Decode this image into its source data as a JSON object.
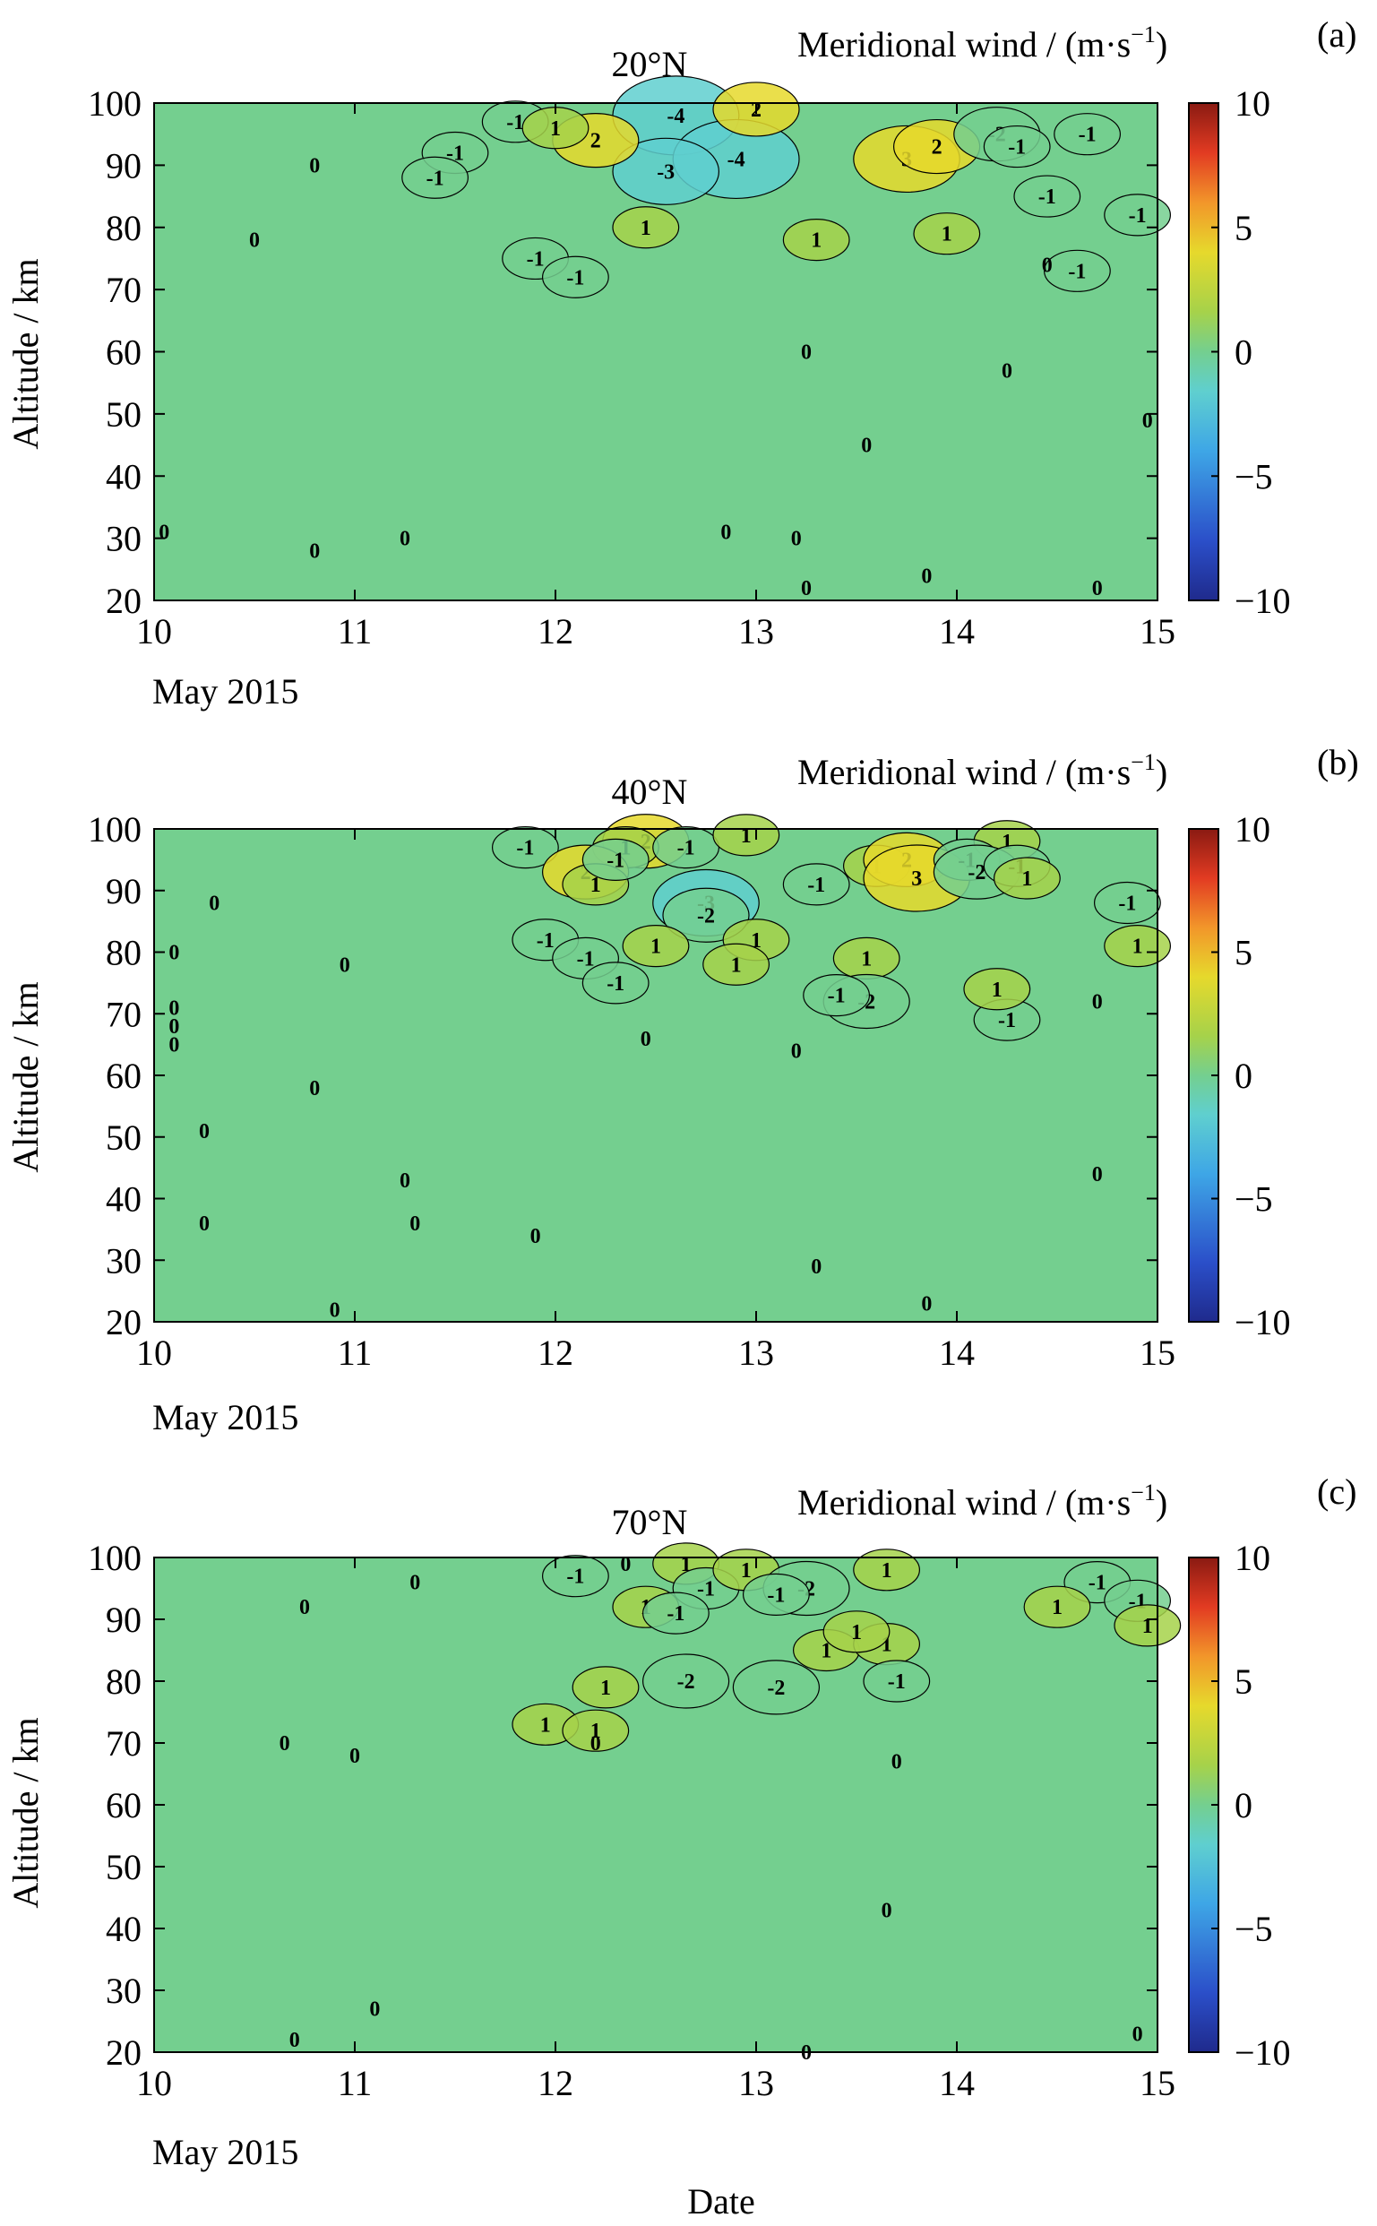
{
  "colorbar": {
    "title": "Meridional wind / (m·s",
    "title_exp": "−1",
    "title_close": ")",
    "min": -10,
    "max": 10,
    "ticks": [
      "10",
      "5",
      "0",
      "−5",
      "−10"
    ],
    "tick_values": [
      10,
      5,
      0,
      -5,
      -10
    ],
    "colormap": [
      "#1f2a8c",
      "#2b4fc9",
      "#3ea6e6",
      "#5fcfcf",
      "#74cf8f",
      "#a6d24a",
      "#e6d92c",
      "#f2962a",
      "#e23b22",
      "#8a1a12"
    ],
    "background": "#74cf8f",
    "positive_fill": "#9fd15c",
    "negative_fill": "#5ec6c2"
  },
  "x_axis": {
    "ticks": [
      "10",
      "11",
      "12",
      "13",
      "14",
      "15"
    ],
    "month_label": "May 2015",
    "xlim": [
      10,
      15
    ],
    "xlabel": "Date"
  },
  "y_axis": {
    "label": "Altitude / km",
    "ticks": [
      "100",
      "90",
      "80",
      "70",
      "60",
      "50",
      "40",
      "30",
      "20"
    ],
    "ylim": [
      20,
      100
    ]
  },
  "chart_data": [
    {
      "type": "heatmap",
      "panel_tag": "(a)",
      "title": "20°N",
      "xlabel": "",
      "ylabel": "Altitude / km",
      "xlim": [
        10,
        15
      ],
      "ylim": [
        20,
        100
      ],
      "contour_labels": [
        {
          "x": 11.8,
          "y": 97,
          "text": "-1"
        },
        {
          "x": 12.6,
          "y": 98,
          "text": "-4"
        },
        {
          "x": 12.9,
          "y": 91,
          "text": "-4"
        },
        {
          "x": 12.55,
          "y": 89,
          "text": "-3"
        },
        {
          "x": 13.0,
          "y": 99,
          "text": "2"
        },
        {
          "x": 12.2,
          "y": 94,
          "text": "2"
        },
        {
          "x": 12.0,
          "y": 96,
          "text": "1"
        },
        {
          "x": 13.75,
          "y": 91,
          "text": "3"
        },
        {
          "x": 13.9,
          "y": 93,
          "text": "2"
        },
        {
          "x": 14.2,
          "y": 95,
          "text": "-2"
        },
        {
          "x": 14.3,
          "y": 93,
          "text": "-1"
        },
        {
          "x": 14.65,
          "y": 95,
          "text": "-1"
        },
        {
          "x": 11.5,
          "y": 92,
          "text": "-1"
        },
        {
          "x": 11.4,
          "y": 88,
          "text": "-1"
        },
        {
          "x": 11.9,
          "y": 75,
          "text": "-1"
        },
        {
          "x": 12.1,
          "y": 72,
          "text": "-1"
        },
        {
          "x": 12.45,
          "y": 80,
          "text": "1"
        },
        {
          "x": 13.3,
          "y": 78,
          "text": "1"
        },
        {
          "x": 13.95,
          "y": 79,
          "text": "1"
        },
        {
          "x": 14.45,
          "y": 85,
          "text": "-1"
        },
        {
          "x": 14.6,
          "y": 73,
          "text": "-1"
        },
        {
          "x": 14.45,
          "y": 74,
          "text": "0"
        },
        {
          "x": 14.9,
          "y": 82,
          "text": "-1"
        },
        {
          "x": 10.8,
          "y": 90,
          "text": "0"
        },
        {
          "x": 10.5,
          "y": 78,
          "text": "0"
        },
        {
          "x": 13.25,
          "y": 60,
          "text": "0"
        },
        {
          "x": 14.25,
          "y": 57,
          "text": "0"
        },
        {
          "x": 13.55,
          "y": 45,
          "text": "0"
        },
        {
          "x": 14.95,
          "y": 49,
          "text": "0"
        },
        {
          "x": 10.05,
          "y": 31,
          "text": "0"
        },
        {
          "x": 10.8,
          "y": 28,
          "text": "0"
        },
        {
          "x": 11.25,
          "y": 30,
          "text": "0"
        },
        {
          "x": 12.85,
          "y": 31,
          "text": "0"
        },
        {
          "x": 13.2,
          "y": 30,
          "text": "0"
        },
        {
          "x": 13.85,
          "y": 24,
          "text": "0"
        },
        {
          "x": 13.25,
          "y": 22,
          "text": "0"
        },
        {
          "x": 14.7,
          "y": 22,
          "text": "0"
        }
      ]
    },
    {
      "type": "heatmap",
      "panel_tag": "(b)",
      "title": "40°N",
      "xlabel": "",
      "ylabel": "Altitude / km",
      "xlim": [
        10,
        15
      ],
      "ylim": [
        20,
        100
      ],
      "contour_labels": [
        {
          "x": 11.85,
          "y": 97,
          "text": "-1"
        },
        {
          "x": 12.45,
          "y": 98,
          "text": "2"
        },
        {
          "x": 12.35,
          "y": 97,
          "text": "1"
        },
        {
          "x": 12.15,
          "y": 93,
          "text": "2"
        },
        {
          "x": 12.2,
          "y": 91,
          "text": "1"
        },
        {
          "x": 12.3,
          "y": 95,
          "text": "-1"
        },
        {
          "x": 12.65,
          "y": 97,
          "text": "-1"
        },
        {
          "x": 12.95,
          "y": 99,
          "text": "1"
        },
        {
          "x": 12.75,
          "y": 88,
          "text": "-3"
        },
        {
          "x": 12.75,
          "y": 86,
          "text": "-2"
        },
        {
          "x": 13.3,
          "y": 91,
          "text": "-1"
        },
        {
          "x": 13.6,
          "y": 94,
          "text": "1"
        },
        {
          "x": 13.75,
          "y": 95,
          "text": "2"
        },
        {
          "x": 13.8,
          "y": 92,
          "text": "3"
        },
        {
          "x": 14.25,
          "y": 98,
          "text": "1"
        },
        {
          "x": 14.05,
          "y": 95,
          "text": "-1"
        },
        {
          "x": 14.1,
          "y": 93,
          "text": "-2"
        },
        {
          "x": 14.3,
          "y": 94,
          "text": "-1"
        },
        {
          "x": 14.35,
          "y": 92,
          "text": "1"
        },
        {
          "x": 14.85,
          "y": 88,
          "text": "-1"
        },
        {
          "x": 14.9,
          "y": 81,
          "text": "1"
        },
        {
          "x": 11.95,
          "y": 82,
          "text": "-1"
        },
        {
          "x": 12.15,
          "y": 79,
          "text": "-1"
        },
        {
          "x": 12.5,
          "y": 81,
          "text": "1"
        },
        {
          "x": 13.0,
          "y": 82,
          "text": "1"
        },
        {
          "x": 13.55,
          "y": 79,
          "text": "1"
        },
        {
          "x": 13.55,
          "y": 72,
          "text": "-2"
        },
        {
          "x": 13.4,
          "y": 73,
          "text": "-1"
        },
        {
          "x": 14.25,
          "y": 69,
          "text": "-1"
        },
        {
          "x": 14.7,
          "y": 72,
          "text": "0"
        },
        {
          "x": 14.2,
          "y": 74,
          "text": "1"
        },
        {
          "x": 12.3,
          "y": 75,
          "text": "-1"
        },
        {
          "x": 12.9,
          "y": 78,
          "text": "1"
        },
        {
          "x": 10.3,
          "y": 88,
          "text": "0"
        },
        {
          "x": 10.1,
          "y": 80,
          "text": "0"
        },
        {
          "x": 10.1,
          "y": 71,
          "text": "0"
        },
        {
          "x": 10.1,
          "y": 68,
          "text": "0"
        },
        {
          "x": 10.1,
          "y": 65,
          "text": "0"
        },
        {
          "x": 10.95,
          "y": 78,
          "text": "0"
        },
        {
          "x": 12.45,
          "y": 66,
          "text": "0"
        },
        {
          "x": 13.2,
          "y": 64,
          "text": "0"
        },
        {
          "x": 11.25,
          "y": 43,
          "text": "0"
        },
        {
          "x": 10.25,
          "y": 36,
          "text": "0"
        },
        {
          "x": 10.8,
          "y": 58,
          "text": "0"
        },
        {
          "x": 10.25,
          "y": 51,
          "text": "0"
        },
        {
          "x": 11.3,
          "y": 36,
          "text": "0"
        },
        {
          "x": 11.9,
          "y": 34,
          "text": "0"
        },
        {
          "x": 13.3,
          "y": 29,
          "text": "0"
        },
        {
          "x": 13.85,
          "y": 23,
          "text": "0"
        },
        {
          "x": 10.9,
          "y": 22,
          "text": "0"
        },
        {
          "x": 14.7,
          "y": 44,
          "text": "0"
        }
      ]
    },
    {
      "type": "heatmap",
      "panel_tag": "(c)",
      "title": "70°N",
      "xlabel": "Date",
      "ylabel": "Altitude / km",
      "xlim": [
        10,
        15
      ],
      "ylim": [
        20,
        100
      ],
      "contour_labels": [
        {
          "x": 12.1,
          "y": 97,
          "text": "-1"
        },
        {
          "x": 12.35,
          "y": 99,
          "text": "0"
        },
        {
          "x": 12.65,
          "y": 99,
          "text": "1"
        },
        {
          "x": 12.75,
          "y": 95,
          "text": "-1"
        },
        {
          "x": 12.95,
          "y": 98,
          "text": "1"
        },
        {
          "x": 12.45,
          "y": 92,
          "text": "1"
        },
        {
          "x": 12.6,
          "y": 91,
          "text": "-1"
        },
        {
          "x": 13.25,
          "y": 95,
          "text": "-2"
        },
        {
          "x": 13.1,
          "y": 94,
          "text": "-1"
        },
        {
          "x": 13.35,
          "y": 85,
          "text": "1"
        },
        {
          "x": 13.65,
          "y": 86,
          "text": "1"
        },
        {
          "x": 13.5,
          "y": 88,
          "text": "1"
        },
        {
          "x": 13.7,
          "y": 80,
          "text": "-1"
        },
        {
          "x": 12.65,
          "y": 80,
          "text": "-2"
        },
        {
          "x": 13.1,
          "y": 79,
          "text": "-2"
        },
        {
          "x": 12.25,
          "y": 79,
          "text": "1"
        },
        {
          "x": 11.95,
          "y": 73,
          "text": "1"
        },
        {
          "x": 12.2,
          "y": 72,
          "text": "1"
        },
        {
          "x": 13.65,
          "y": 98,
          "text": "1"
        },
        {
          "x": 14.7,
          "y": 96,
          "text": "-1"
        },
        {
          "x": 14.5,
          "y": 92,
          "text": "1"
        },
        {
          "x": 14.9,
          "y": 93,
          "text": "-1"
        },
        {
          "x": 14.95,
          "y": 89,
          "text": "1"
        },
        {
          "x": 11.3,
          "y": 96,
          "text": "0"
        },
        {
          "x": 10.75,
          "y": 92,
          "text": "0"
        },
        {
          "x": 10.65,
          "y": 70,
          "text": "0"
        },
        {
          "x": 11.0,
          "y": 68,
          "text": "0"
        },
        {
          "x": 12.2,
          "y": 70,
          "text": "0"
        },
        {
          "x": 13.7,
          "y": 67,
          "text": "0"
        },
        {
          "x": 13.65,
          "y": 43,
          "text": "0"
        },
        {
          "x": 10.7,
          "y": 22,
          "text": "0"
        },
        {
          "x": 11.1,
          "y": 27,
          "text": "0"
        },
        {
          "x": 13.25,
          "y": 20,
          "text": "0"
        },
        {
          "x": 14.9,
          "y": 23,
          "text": "0"
        }
      ]
    }
  ]
}
